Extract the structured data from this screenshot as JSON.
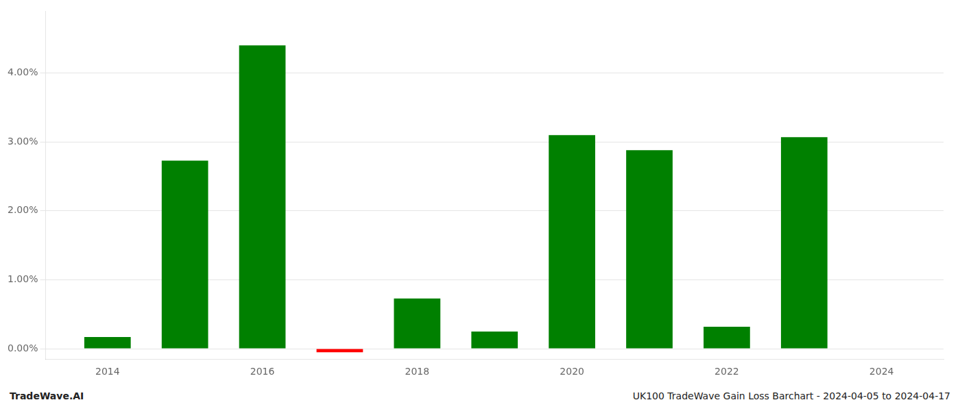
{
  "chart_data": {
    "type": "bar",
    "x": [
      2014,
      2015,
      2016,
      2017,
      2018,
      2019,
      2020,
      2021,
      2022,
      2023,
      2024
    ],
    "values": [
      0.0017,
      0.0273,
      0.044,
      -0.0005,
      0.0073,
      0.0025,
      0.031,
      0.0288,
      0.0032,
      0.0307,
      null
    ],
    "colors": [
      "#008000",
      "#008000",
      "#008000",
      "#ff0000",
      "#008000",
      "#008000",
      "#008000",
      "#008000",
      "#008000",
      "#008000",
      null
    ],
    "xlim": [
      2013.2,
      2024.8
    ],
    "xticks": [
      2014,
      2016,
      2018,
      2020,
      2022,
      2024
    ],
    "ylim": [
      -0.0015,
      0.049
    ],
    "yticks": [
      {
        "value": 0.0,
        "label": "0.00%"
      },
      {
        "value": 0.01,
        "label": "1.00%"
      },
      {
        "value": 0.02,
        "label": "2.00%"
      },
      {
        "value": 0.03,
        "label": "3.00%"
      },
      {
        "value": 0.04,
        "label": "4.00%"
      }
    ],
    "grid": true,
    "annotations": [
      "TradeWave.AI",
      "UK100 TradeWave Gain Loss Barchart - 2024-04-05 to 2024-04-17"
    ]
  }
}
